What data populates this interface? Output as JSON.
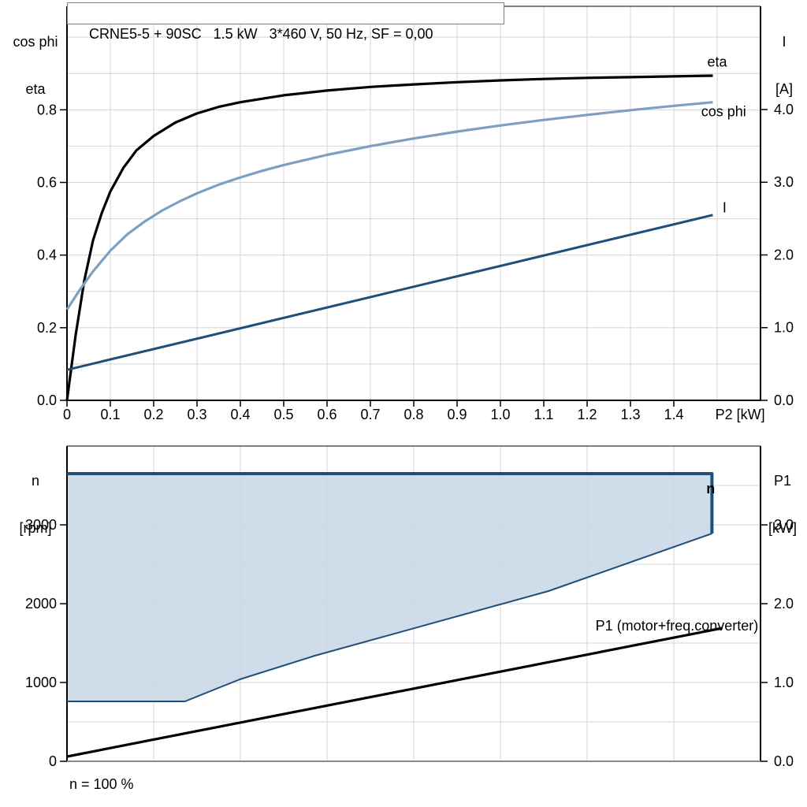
{
  "title_box": {
    "text": "CRNE5-5 + 90SC   1.5 kW   3*460 V, 50 Hz, SF = 0,00"
  },
  "header": {
    "left_top": {
      "line1": "cos phi",
      "line2": "eta"
    },
    "right_top": {
      "line1": "I",
      "line2": "[A]"
    },
    "left_bottom": {
      "line1": "n",
      "line2": "[rpm]"
    },
    "right_bottom": {
      "line1": "P1",
      "line2": "[kW]"
    }
  },
  "footer": {
    "text": "n = 100 %"
  },
  "colors": {
    "grid": "#d4d4d8",
    "axis": "#000000",
    "bottom_axis_lower_chart": "#8c8c8c",
    "eta": "#000000",
    "cos_phi": "#7f9fc1",
    "current": "#1f4e79",
    "n_fill": "#cfddeb",
    "n_stroke": "#1f4e79",
    "n_label": "#2767b0",
    "p1": "#000000",
    "title_border": "#7f7f7f"
  },
  "chart_data": [
    {
      "type": "line",
      "name": "motor-curves",
      "title": "CRNE5-5 + 90SC   1.5 kW   3*460 V, 50 Hz, SF = 0,00",
      "xlabel": "P2 [kW]",
      "ylabel_left": "cos phi / eta",
      "ylabel_right": "I [A]",
      "x": {
        "min": 0,
        "max": 1.6,
        "grid": [
          0.1,
          0.2,
          0.3,
          0.4,
          0.5,
          0.6,
          0.7,
          0.8,
          0.9,
          1.0,
          1.1,
          1.2,
          1.3,
          1.4,
          1.5
        ],
        "ticks": [
          {
            "v": 0,
            "l": "0"
          },
          {
            "v": 0.1,
            "l": "0.1"
          },
          {
            "v": 0.2,
            "l": "0.2"
          },
          {
            "v": 0.3,
            "l": "0.3"
          },
          {
            "v": 0.4,
            "l": "0.4"
          },
          {
            "v": 0.5,
            "l": "0.5"
          },
          {
            "v": 0.6,
            "l": "0.6"
          },
          {
            "v": 0.7,
            "l": "0.7"
          },
          {
            "v": 0.8,
            "l": "0.8"
          },
          {
            "v": 0.9,
            "l": "0.9"
          },
          {
            "v": 1.0,
            "l": "1.0"
          },
          {
            "v": 1.1,
            "l": "1.1"
          },
          {
            "v": 1.2,
            "l": "1.2"
          },
          {
            "v": 1.3,
            "l": "1.3"
          },
          {
            "v": 1.4,
            "l": "1.4"
          }
        ],
        "axis_label": "P2 [kW]",
        "axis_label_x": 1.553
      },
      "left": {
        "min": 0,
        "max": 1.085,
        "grid": [
          0.1,
          0.2,
          0.3,
          0.4,
          0.5,
          0.6,
          0.7,
          0.8,
          0.9,
          1.0
        ],
        "ticks": [
          {
            "v": 0,
            "l": "0.0"
          },
          {
            "v": 0.2,
            "l": "0.2"
          },
          {
            "v": 0.4,
            "l": "0.4"
          },
          {
            "v": 0.6,
            "l": "0.6"
          },
          {
            "v": 0.8,
            "l": "0.8"
          }
        ]
      },
      "right": {
        "min": 0,
        "max": 5.42,
        "ticks": [
          {
            "v": 0,
            "l": "0.0"
          },
          {
            "v": 1,
            "l": "1.0"
          },
          {
            "v": 2,
            "l": "2.0"
          },
          {
            "v": 3,
            "l": "3.0"
          },
          {
            "v": 4,
            "l": "4.0"
          }
        ]
      },
      "series": [
        {
          "name": "eta",
          "type": "line",
          "axis": "left",
          "color": "#000000",
          "width": 3.2,
          "label": {
            "text": "eta",
            "x": 1.5,
            "y": 0.932,
            "anchor": "middle",
            "color": "#000000"
          },
          "points": [
            [
              0,
              0
            ],
            [
              0.02,
              0.18
            ],
            [
              0.04,
              0.33
            ],
            [
              0.06,
              0.44
            ],
            [
              0.08,
              0.515
            ],
            [
              0.1,
              0.575
            ],
            [
              0.13,
              0.64
            ],
            [
              0.16,
              0.688
            ],
            [
              0.2,
              0.728
            ],
            [
              0.25,
              0.765
            ],
            [
              0.3,
              0.79
            ],
            [
              0.35,
              0.808
            ],
            [
              0.4,
              0.821
            ],
            [
              0.5,
              0.84
            ],
            [
              0.6,
              0.853
            ],
            [
              0.7,
              0.863
            ],
            [
              0.8,
              0.87
            ],
            [
              0.9,
              0.876
            ],
            [
              1.0,
              0.881
            ],
            [
              1.1,
              0.885
            ],
            [
              1.2,
              0.888
            ],
            [
              1.3,
              0.89
            ],
            [
              1.4,
              0.892
            ],
            [
              1.49,
              0.894
            ]
          ]
        },
        {
          "name": "cos-phi",
          "type": "line",
          "axis": "left",
          "color": "#7f9fc1",
          "width": 3.2,
          "label": {
            "text": "cos phi",
            "x": 1.515,
            "y": 0.795,
            "anchor": "middle",
            "color": "#7f9fc1"
          },
          "points": [
            [
              0,
              0.25
            ],
            [
              0.03,
              0.305
            ],
            [
              0.06,
              0.355
            ],
            [
              0.1,
              0.412
            ],
            [
              0.14,
              0.458
            ],
            [
              0.18,
              0.493
            ],
            [
              0.22,
              0.523
            ],
            [
              0.26,
              0.548
            ],
            [
              0.3,
              0.57
            ],
            [
              0.35,
              0.594
            ],
            [
              0.4,
              0.614
            ],
            [
              0.45,
              0.632
            ],
            [
              0.5,
              0.648
            ],
            [
              0.6,
              0.676
            ],
            [
              0.7,
              0.7
            ],
            [
              0.8,
              0.721
            ],
            [
              0.9,
              0.74
            ],
            [
              1.0,
              0.757
            ],
            [
              1.1,
              0.772
            ],
            [
              1.2,
              0.786
            ],
            [
              1.3,
              0.799
            ],
            [
              1.4,
              0.811
            ],
            [
              1.49,
              0.821
            ]
          ]
        },
        {
          "name": "current",
          "type": "line",
          "axis": "right",
          "color": "#1f4e79",
          "width": 3,
          "label": {
            "text": "I",
            "x": 1.517,
            "y": 2.65,
            "anchor": "middle",
            "color": "#1f4e79"
          },
          "points": [
            [
              0,
              0.42
            ],
            [
              1.49,
              2.55
            ]
          ]
        }
      ]
    },
    {
      "type": "line+area",
      "name": "speed-envelope-and-p1",
      "xlabel": "",
      "ylabel_left": "n [rpm]",
      "ylabel_right": "P1 [kW]",
      "note": "n = 100 %",
      "x": {
        "min": 0,
        "max": 1.6,
        "grid": [
          0.2,
          0.4,
          0.6,
          0.8,
          1.0,
          1.2,
          1.4
        ],
        "ticks": []
      },
      "left": {
        "min": 0,
        "max": 4000,
        "grid": [
          500,
          1000,
          1500,
          2000,
          2500,
          3000,
          3500
        ],
        "ticks": [
          {
            "v": 0,
            "l": "0"
          },
          {
            "v": 1000,
            "l": "1000"
          },
          {
            "v": 2000,
            "l": "2000"
          },
          {
            "v": 3000,
            "l": "3000"
          }
        ]
      },
      "right": {
        "min": 0,
        "max": 4.0,
        "ticks": [
          {
            "v": 0,
            "l": "0.0"
          },
          {
            "v": 1,
            "l": "1.0"
          },
          {
            "v": 2,
            "l": "2.0"
          },
          {
            "v": 3,
            "l": "3.0"
          }
        ]
      },
      "series": [
        {
          "name": "n-operating-region",
          "type": "area",
          "axis": "left",
          "fill": "#cfddeb",
          "points": [
            [
              0,
              3650
            ],
            [
              1.488,
              3650
            ],
            [
              1.488,
              2890
            ],
            [
              1.111,
              2160
            ],
            [
              0.572,
              1340
            ],
            [
              0.399,
              1040
            ],
            [
              0.272,
              760
            ],
            [
              0,
              760
            ]
          ]
        },
        {
          "name": "n-max",
          "type": "line",
          "axis": "left",
          "color": "#1f4e79",
          "width": 4,
          "label": {
            "text": "n",
            "x": 1.485,
            "y": 3460,
            "anchor": "middle",
            "color": "#2767b0",
            "bold": true
          },
          "points": [
            [
              0,
              3650
            ],
            [
              1.488,
              3650
            ],
            [
              1.488,
              2890
            ]
          ]
        },
        {
          "name": "n-min",
          "type": "line",
          "axis": "left",
          "color": "#1f4e79",
          "width": 2,
          "points": [
            [
              1.488,
              2890
            ],
            [
              1.111,
              2160
            ],
            [
              0.572,
              1340
            ],
            [
              0.399,
              1040
            ],
            [
              0.272,
              760
            ],
            [
              0,
              760
            ]
          ]
        },
        {
          "name": "p1",
          "type": "line",
          "axis": "right",
          "color": "#000000",
          "width": 3.2,
          "label": {
            "text": "P1 (motor+freq.converter)",
            "x": 1.595,
            "y": 1.72,
            "anchor": "end",
            "color": "#000000"
          },
          "points": [
            [
              0,
              0.06
            ],
            [
              1.512,
              1.69
            ]
          ]
        }
      ]
    }
  ]
}
